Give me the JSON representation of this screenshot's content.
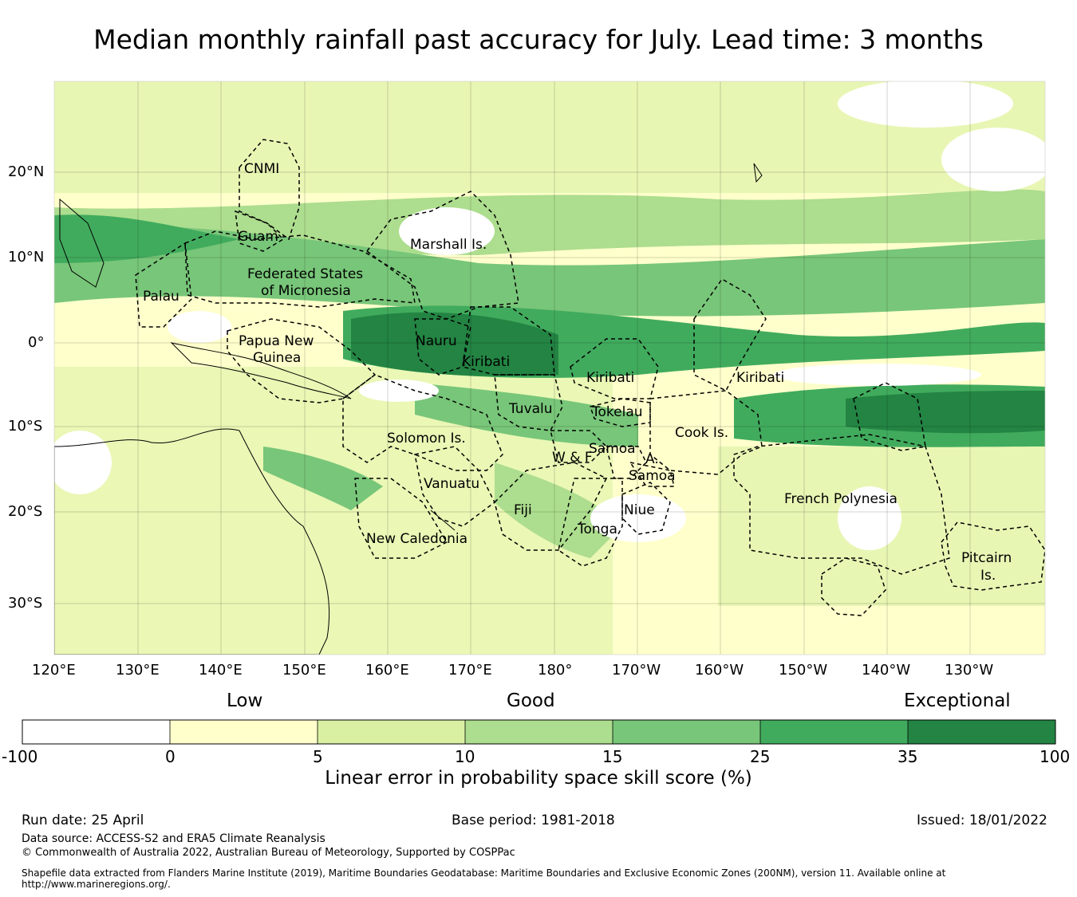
{
  "title": "Median monthly rainfall past accuracy for July. Lead time: 3 months",
  "map": {
    "lat_ticks": [
      "20°N",
      "10°N",
      "0°",
      "10°S",
      "20°S",
      "30°S"
    ],
    "lon_ticks": [
      "120°E",
      "130°E",
      "140°E",
      "150°E",
      "160°E",
      "170°E",
      "180°",
      "170°W",
      "160°W",
      "150°W",
      "140°W",
      "130°W"
    ],
    "regions": [
      "CNMI",
      "Guam",
      "Marshall Is.",
      "Federated States",
      "of Micronesia",
      "Palau",
      "Papua New",
      "Guinea",
      "Nauru",
      "Kiribati",
      "Kiribati",
      "Kiribati",
      "Tuvalu",
      "Tokelau",
      "Cook Is.",
      "Solomon Is.",
      "Samoa",
      "W & F",
      "A.",
      "Samoa",
      "Vanuatu",
      "Fiji",
      "Niue",
      "Tonga",
      "New Caledonia",
      "French Polynesia",
      "Pitcairn",
      "Is."
    ]
  },
  "colorbar": {
    "headings": {
      "low": "Low",
      "good": "Good",
      "exceptional": "Exceptional"
    },
    "bounds": [
      "-100",
      "0",
      "5",
      "10",
      "15",
      "25",
      "35",
      "100"
    ],
    "colors": [
      "#ffffff",
      "#ffffcc",
      "#d9f0a3",
      "#addd8e",
      "#78c679",
      "#41ab5d",
      "#238443"
    ],
    "title": "Linear error in probability space skill score (%)"
  },
  "footer": {
    "run_date": "Run date: 25 April",
    "base_period": "Base period: 1981-2018",
    "issued": "Issued: 18/01/2022",
    "data_source": "Data source: ACCESS-S2 and ERA5 Climate Reanalysis",
    "copyright": "© Commonwealth of Australia 2022, Australian Bureau of Meteorology, Supported by COSPPac",
    "shapefile": "Shapefile data extracted from Flanders Marine Institute (2019), Maritime Boundaries Geodatabase: Maritime Boundaries and Exclusive Economic Zones (200NM), version 11. Available online at http://www.marineregions.org/."
  }
}
